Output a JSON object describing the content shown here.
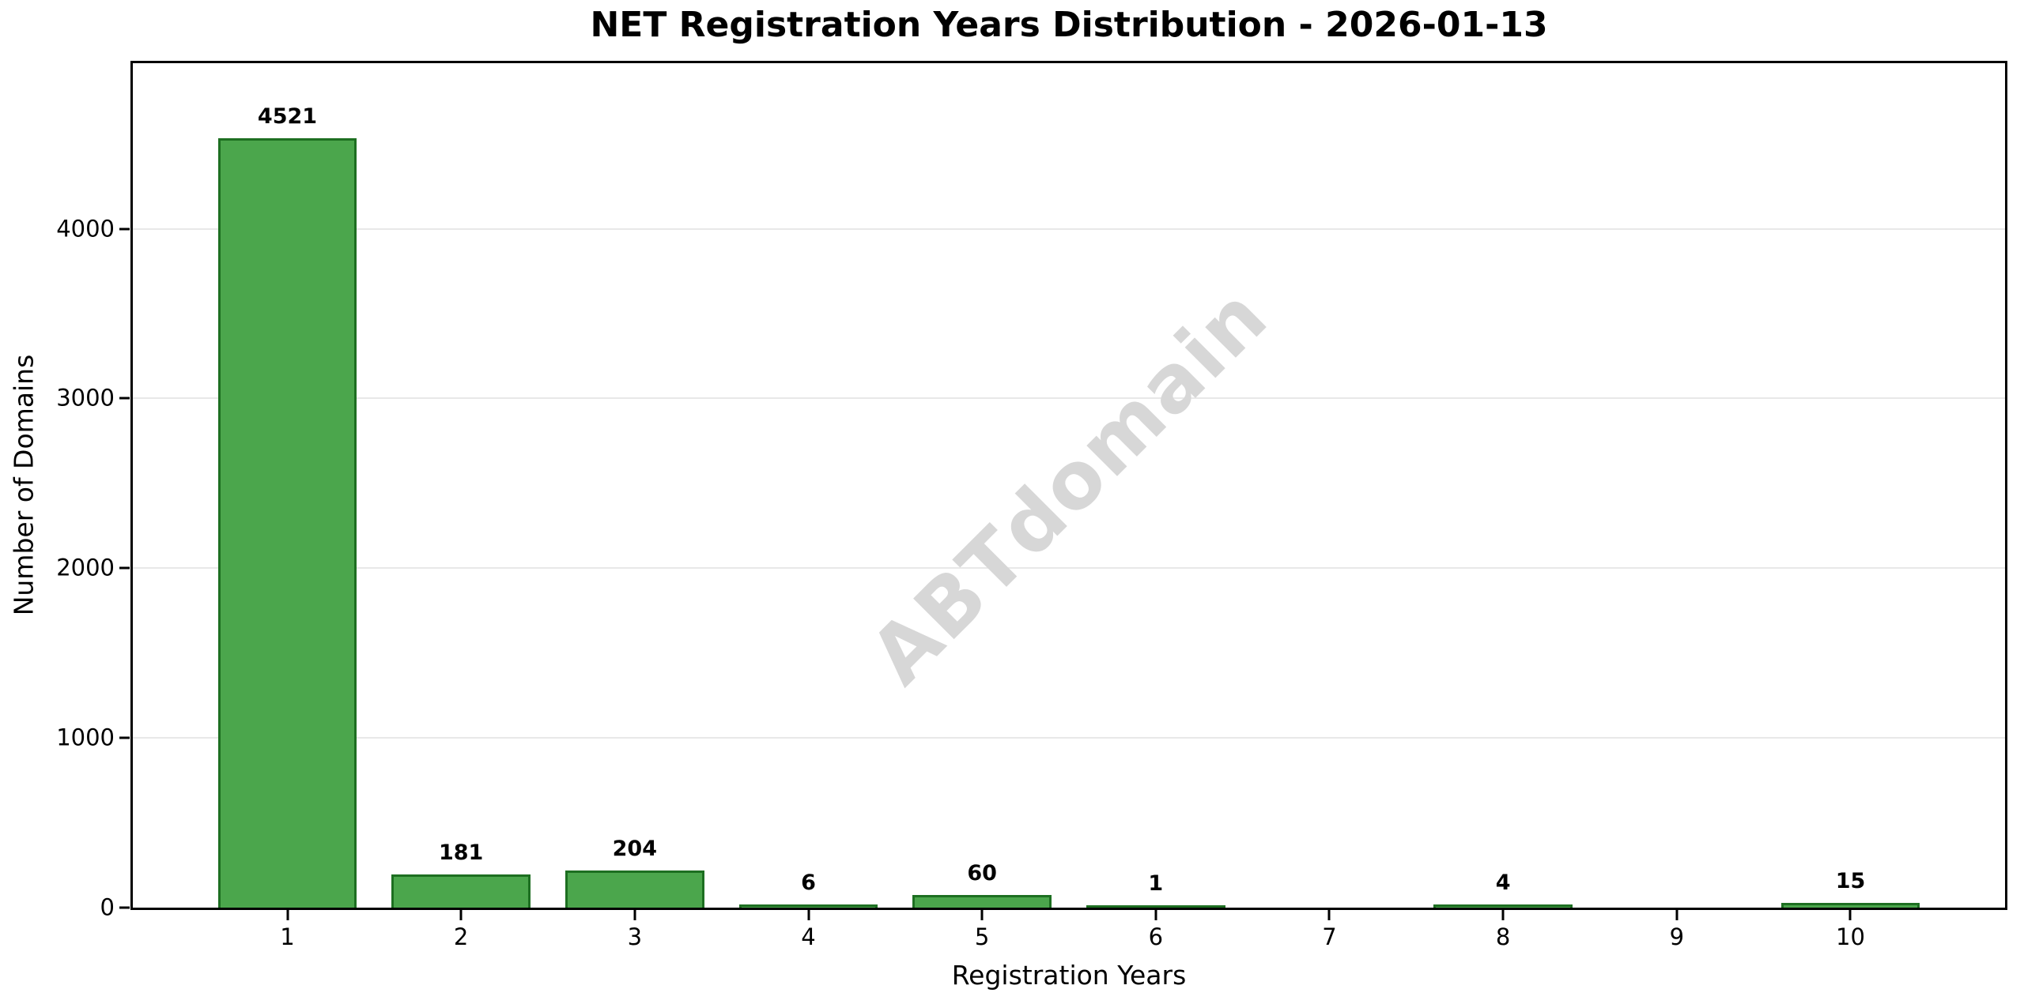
{
  "chart_data": {
    "type": "bar",
    "title": "NET Registration Years Distribution - 2026-01-13",
    "xlabel": "Registration Years",
    "ylabel": "Number of Domains",
    "watermark": "ABTdomain",
    "categories": [
      "1",
      "2",
      "3",
      "4",
      "5",
      "6",
      "7",
      "8",
      "9",
      "10"
    ],
    "values": [
      4521,
      181,
      204,
      6,
      60,
      1,
      0,
      4,
      0,
      15
    ],
    "bar_labels": [
      "4521",
      "181",
      "204",
      "6",
      "60",
      "1",
      "",
      "4",
      "",
      "15"
    ],
    "yticks": [
      0,
      1000,
      2000,
      3000,
      4000
    ],
    "ylim": [
      0,
      4975
    ],
    "xlim": [
      0.11,
      10.89
    ],
    "bar_width": 0.8,
    "grid": "horizontal",
    "legend": "none",
    "colors": {
      "bar_fill": "#4ba64c",
      "bar_edge": "#1d6f21",
      "grid": "#e8e8e8",
      "watermark": "#d7d7d7",
      "spine": "#000000",
      "text": "#000000"
    }
  }
}
